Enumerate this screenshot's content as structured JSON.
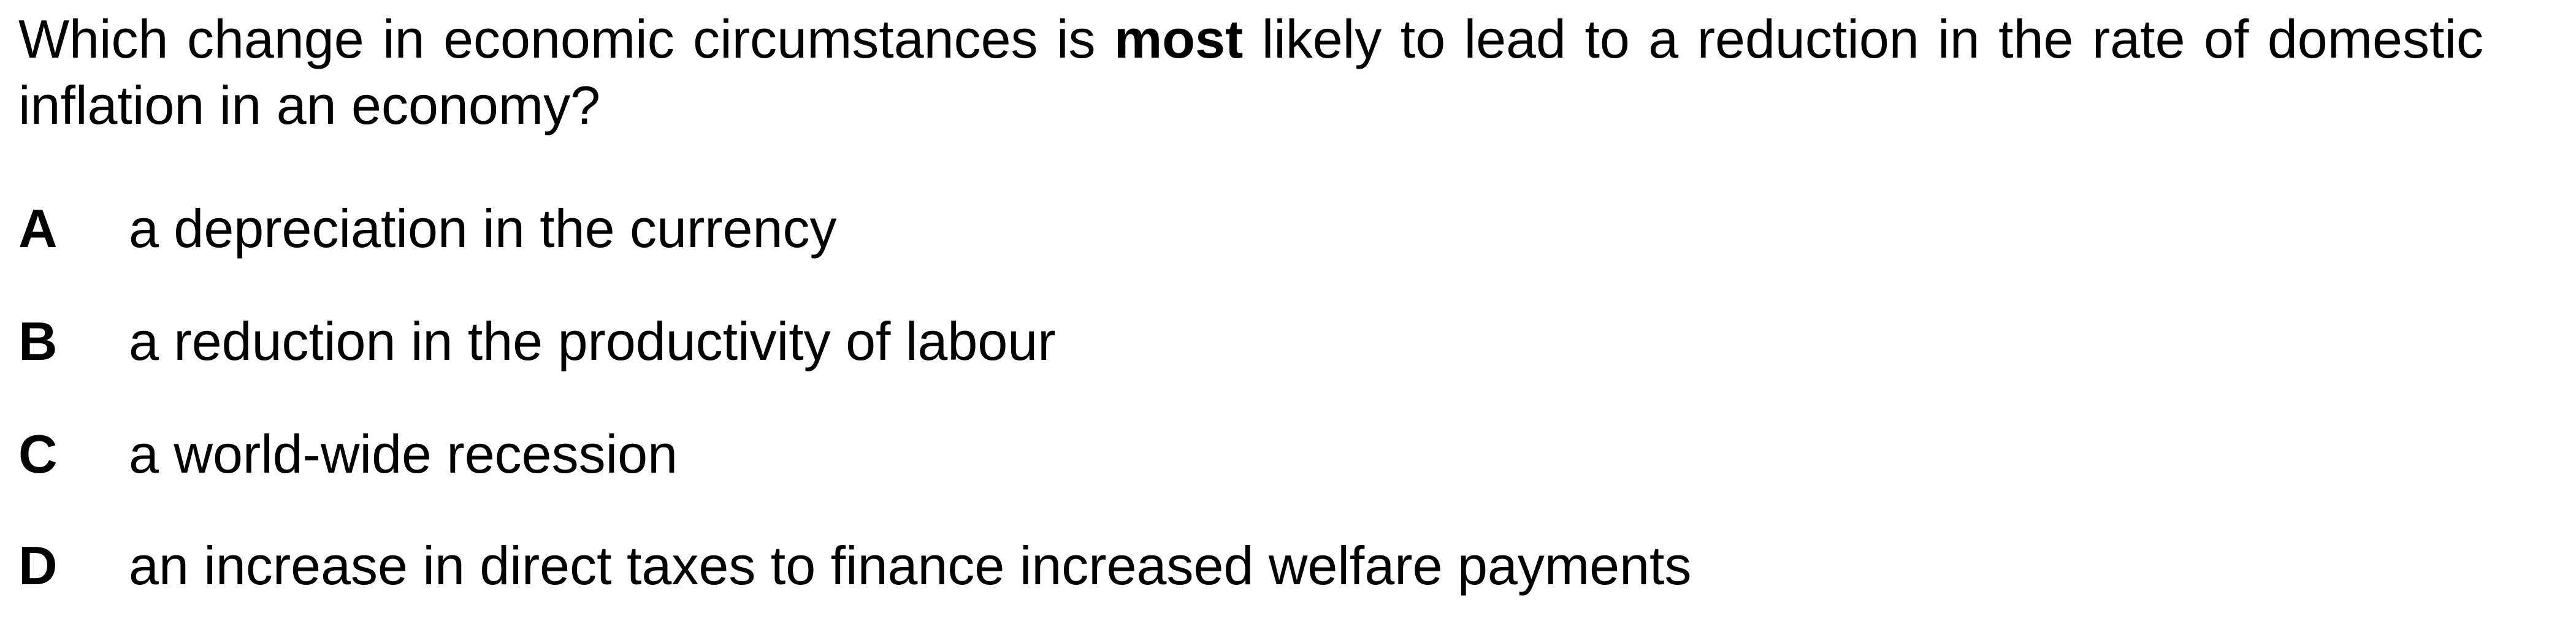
{
  "question": {
    "before": "Which change in economic circumstances is ",
    "emphasis": "most",
    "after": " likely to lead to a reduction in the rate of domestic inflation in an economy?"
  },
  "options": [
    {
      "letter": "A",
      "text": "a depreciation in the currency"
    },
    {
      "letter": "B",
      "text": "a reduction in the productivity of labour"
    },
    {
      "letter": "C",
      "text": "a world-wide recession"
    },
    {
      "letter": "D",
      "text": "an increase in direct taxes to finance increased welfare payments"
    }
  ]
}
